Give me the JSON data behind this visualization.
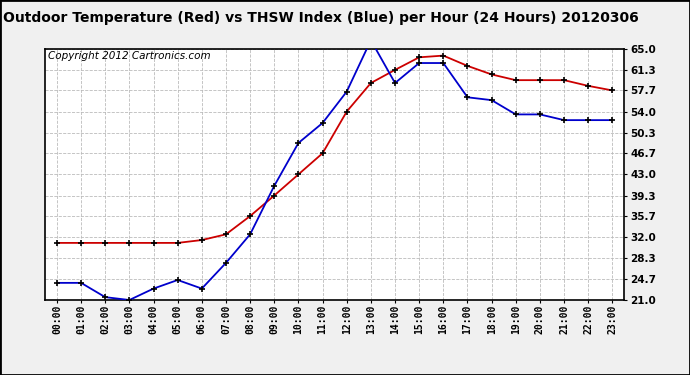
{
  "title": "Outdoor Temperature (Red) vs THSW Index (Blue) per Hour (24 Hours) 20120306",
  "copyright": "Copyright 2012 Cartronics.com",
  "hours": [
    "00:00",
    "01:00",
    "02:00",
    "03:00",
    "04:00",
    "05:00",
    "06:00",
    "07:00",
    "08:00",
    "09:00",
    "10:00",
    "11:00",
    "12:00",
    "13:00",
    "14:00",
    "15:00",
    "16:00",
    "17:00",
    "18:00",
    "19:00",
    "20:00",
    "21:00",
    "22:00",
    "23:00"
  ],
  "red_temp": [
    31.0,
    31.0,
    31.0,
    31.0,
    31.0,
    31.0,
    31.5,
    32.5,
    35.7,
    39.3,
    43.0,
    46.7,
    54.0,
    59.0,
    61.3,
    63.5,
    63.8,
    62.0,
    60.5,
    59.5,
    59.5,
    59.5,
    58.5,
    57.7
  ],
  "blue_thsw": [
    24.0,
    24.0,
    21.5,
    21.0,
    23.0,
    24.5,
    23.0,
    27.5,
    32.5,
    41.0,
    48.5,
    52.0,
    57.5,
    66.5,
    59.0,
    62.5,
    62.5,
    56.5,
    56.0,
    53.5,
    53.5,
    52.5,
    52.5,
    52.5
  ],
  "ylim": [
    21.0,
    65.0
  ],
  "yticks": [
    21.0,
    24.7,
    28.3,
    32.0,
    35.7,
    39.3,
    43.0,
    46.7,
    50.3,
    54.0,
    57.7,
    61.3,
    65.0
  ],
  "fig_bg_color": "#f0f0f0",
  "plot_bg_color": "#ffffff",
  "grid_color": "#bbbbbb",
  "red_color": "#cc0000",
  "blue_color": "#0000cc",
  "title_fontsize": 10,
  "copyright_fontsize": 7.5,
  "marker_color_red": "#000000",
  "marker_color_blue": "#000000"
}
